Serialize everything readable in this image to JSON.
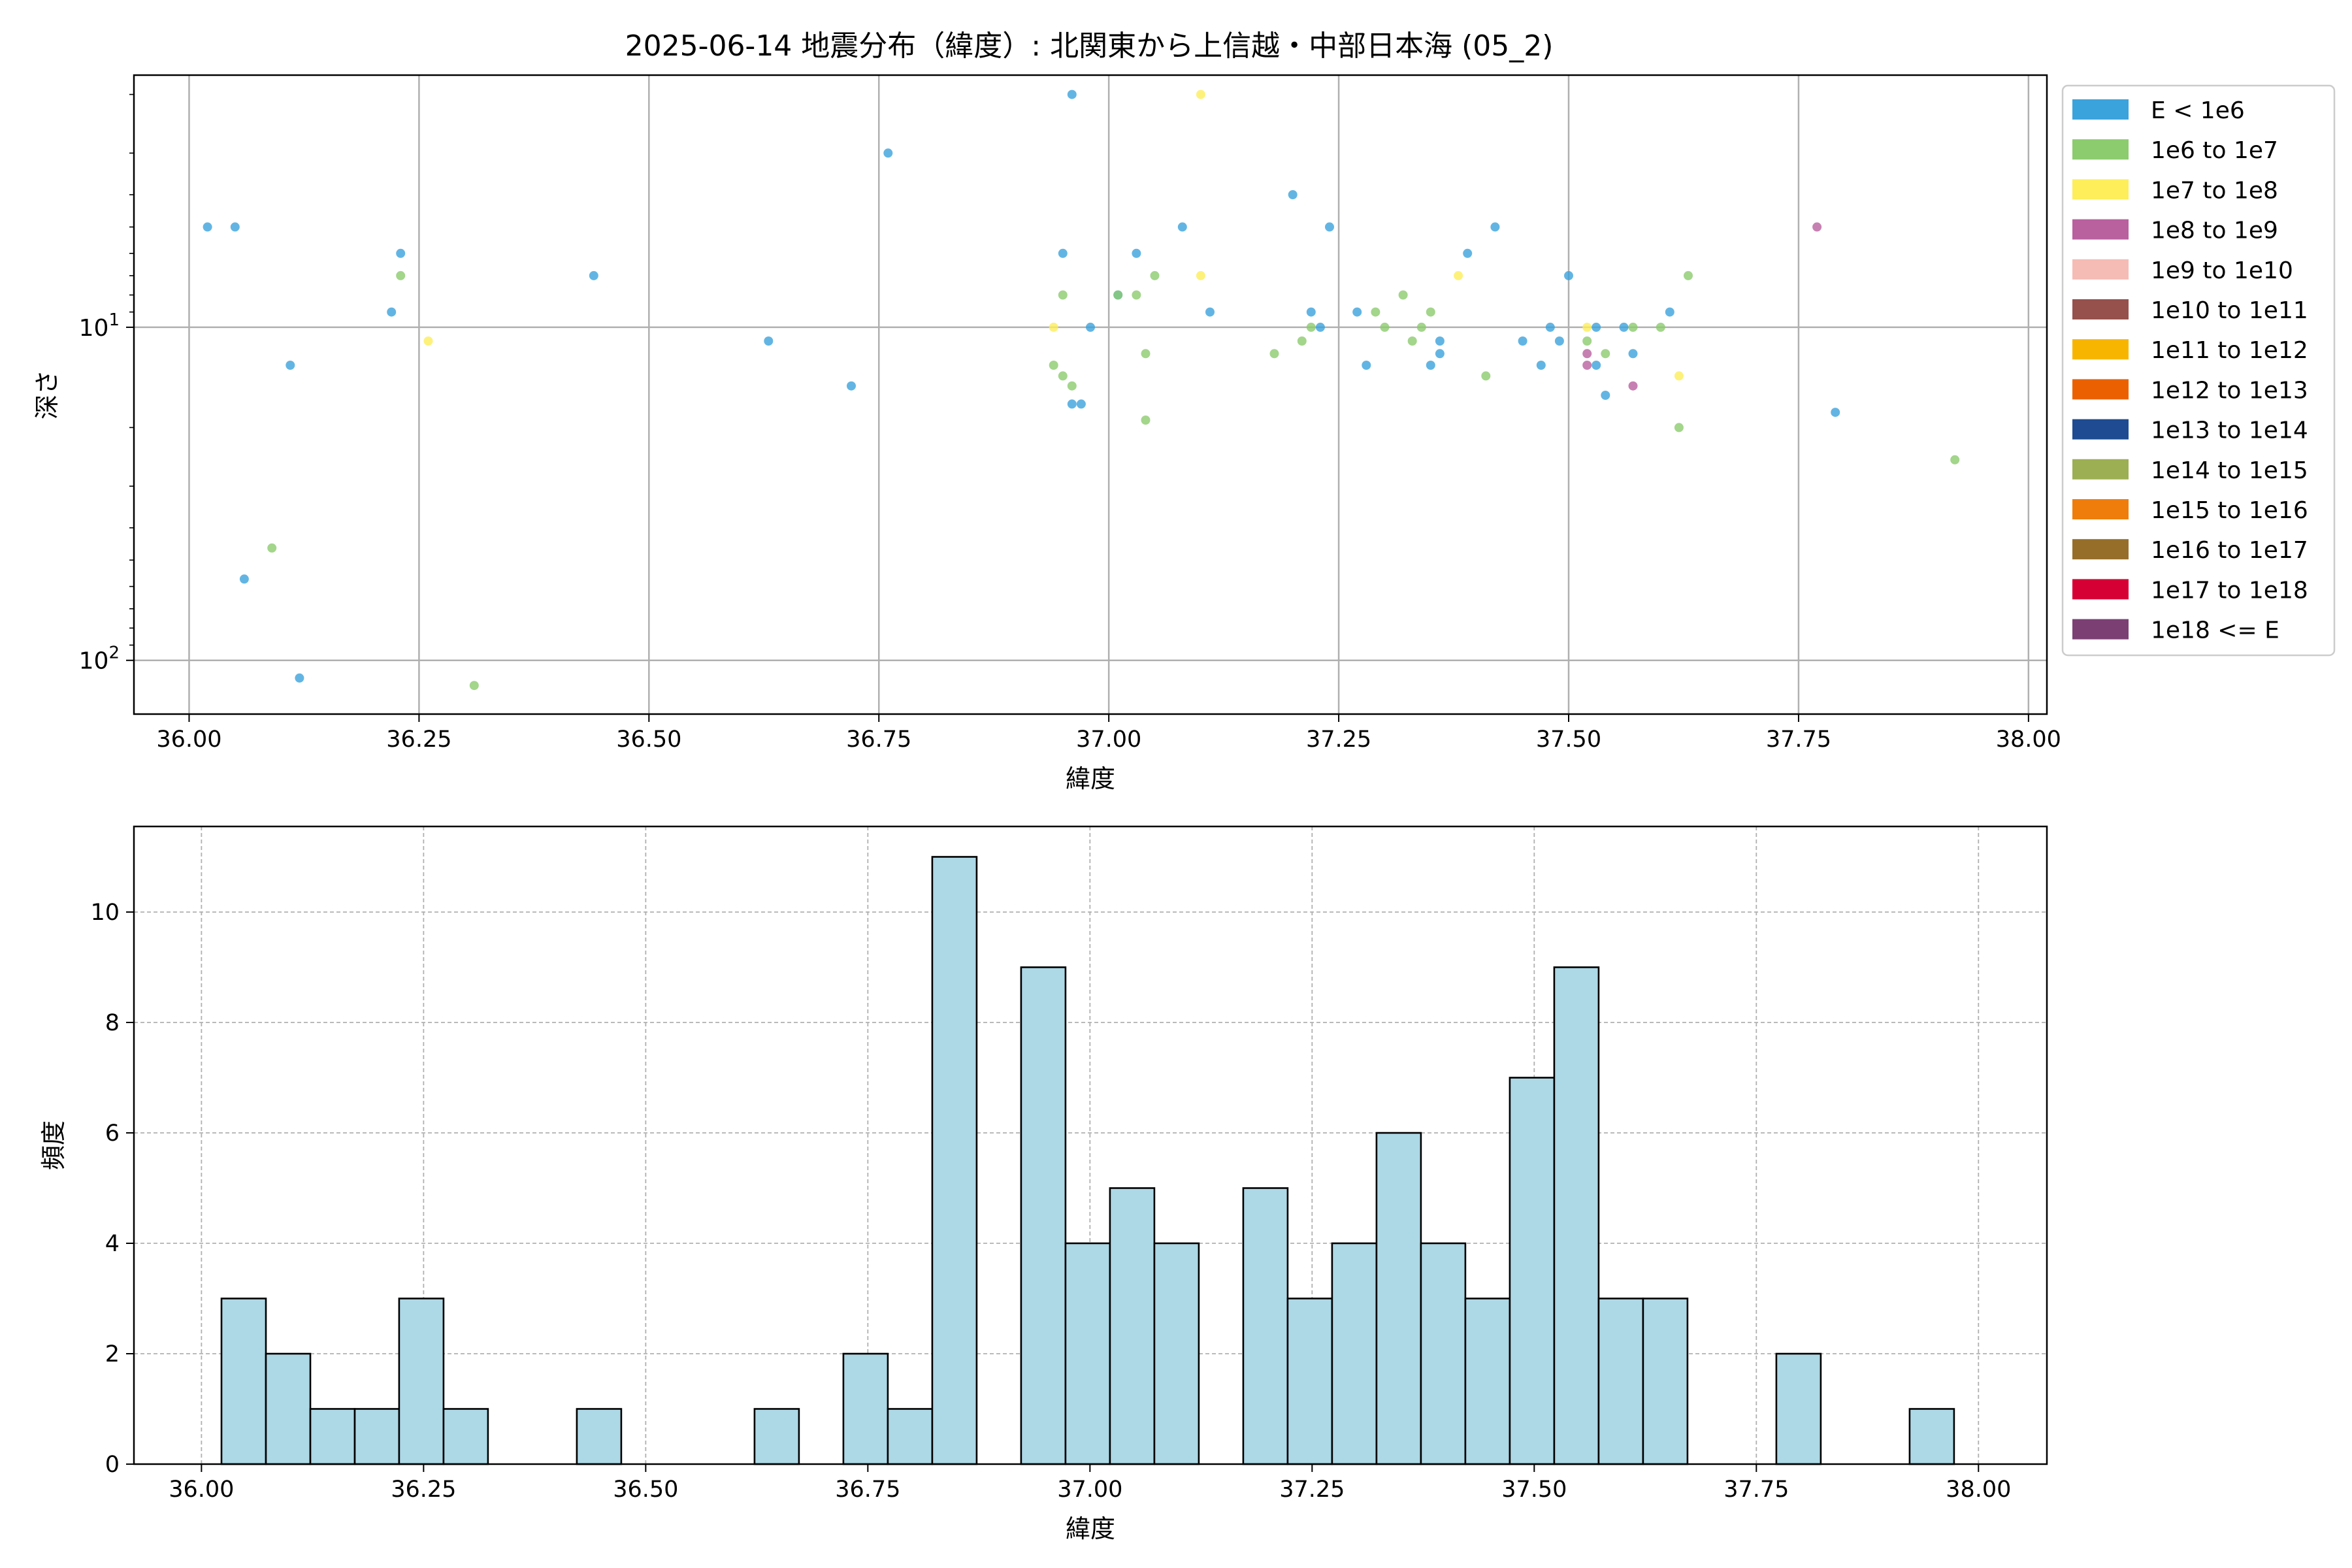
{
  "title": "2025-06-14 地震分布（緯度）: 北関東から上信越・中部日本海 (05_2)",
  "colors": {
    "E < 1e6": "#3ba3dc",
    "1e6 to 1e7": "#8ccb6e",
    "1e7 to 1e8": "#fdee5a",
    "1e8 to 1e9": "#b9609f",
    "1e9 to 1e10": "#f5bbb5",
    "1e10 to 1e11": "#96514d",
    "1e11 to 1e12": "#f8b500",
    "1e12 to 1e13": "#eb6101",
    "1e13 to 1e14": "#1e4b91",
    "1e14 to 1e15": "#9caf52",
    "1e15 to 1e16": "#ef7d0c",
    "1e16 to 1e17": "#976e29",
    "1e17 to 1e18": "#d70035",
    "1e18 <= E": "#7b3f74",
    "hist_fill": "#add8e6"
  },
  "chart_data": [
    {
      "type": "scatter",
      "title": "2025-06-14 地震分布（緯度）: 北関東から上信越・中部日本海 (05_2)",
      "xlabel": "緯度",
      "ylabel": "深さ",
      "y_scale": "log",
      "y_inverted": true,
      "xlim": [
        35.94,
        38.02
      ],
      "ylim": [
        1.75,
        145
      ],
      "x_ticks": [
        "36.00",
        "36.25",
        "36.50",
        "36.75",
        "37.00",
        "37.25",
        "37.50",
        "37.75",
        "38.00"
      ],
      "y_ticks": [
        {
          "value": 10,
          "label": "10^1"
        },
        {
          "value": 100,
          "label": "10^2"
        }
      ],
      "grid": true,
      "legend_position": "outside-right",
      "legend": [
        "E < 1e6",
        "1e6 to 1e7",
        "1e7 to 1e8",
        "1e8 to 1e9",
        "1e9 to 1e10",
        "1e10 to 1e11",
        "1e11 to 1e12",
        "1e12 to 1e13",
        "1e13 to 1e14",
        "1e14 to 1e15",
        "1e15 to 1e16",
        "1e16 to 1e17",
        "1e17 to 1e18",
        "1e18 <= E"
      ],
      "series": [
        {
          "name": "E < 1e6",
          "points": [
            [
              36.02,
              5
            ],
            [
              36.05,
              5
            ],
            [
              36.06,
              57
            ],
            [
              36.11,
              13
            ],
            [
              36.12,
              113
            ],
            [
              36.22,
              9
            ],
            [
              36.23,
              6
            ],
            [
              36.44,
              7
            ],
            [
              36.63,
              11
            ],
            [
              36.72,
              15
            ],
            [
              36.76,
              3
            ],
            [
              36.95,
              6
            ],
            [
              36.96,
              2
            ],
            [
              36.96,
              17
            ],
            [
              36.97,
              17
            ],
            [
              36.98,
              10
            ],
            [
              37.01,
              8
            ],
            [
              37.03,
              6
            ],
            [
              37.08,
              5
            ],
            [
              37.11,
              9
            ],
            [
              37.2,
              4
            ],
            [
              37.22,
              9
            ],
            [
              37.23,
              10
            ],
            [
              37.24,
              5
            ],
            [
              37.27,
              9
            ],
            [
              37.28,
              13
            ],
            [
              37.35,
              13
            ],
            [
              37.36,
              12
            ],
            [
              37.36,
              11
            ],
            [
              37.39,
              6
            ],
            [
              37.42,
              5
            ],
            [
              37.45,
              11
            ],
            [
              37.47,
              13
            ],
            [
              37.48,
              10
            ],
            [
              37.49,
              11
            ],
            [
              37.5,
              7
            ],
            [
              37.53,
              10
            ],
            [
              37.53,
              13
            ],
            [
              37.54,
              16
            ],
            [
              37.56,
              10
            ],
            [
              37.57,
              12
            ],
            [
              37.61,
              9
            ],
            [
              37.79,
              18
            ]
          ]
        },
        {
          "name": "1e6 to 1e7",
          "points": [
            [
              36.09,
              46
            ],
            [
              36.23,
              7
            ],
            [
              36.31,
              119
            ],
            [
              36.94,
              13
            ],
            [
              36.95,
              8
            ],
            [
              36.95,
              14
            ],
            [
              36.96,
              15
            ],
            [
              37.01,
              8
            ],
            [
              37.03,
              8
            ],
            [
              37.04,
              12
            ],
            [
              37.04,
              19
            ],
            [
              37.05,
              7
            ],
            [
              37.18,
              12
            ],
            [
              37.21,
              11
            ],
            [
              37.22,
              10
            ],
            [
              37.29,
              9
            ],
            [
              37.3,
              10
            ],
            [
              37.32,
              8
            ],
            [
              37.33,
              11
            ],
            [
              37.34,
              10
            ],
            [
              37.35,
              9
            ],
            [
              37.41,
              14
            ],
            [
              37.52,
              11
            ],
            [
              37.54,
              12
            ],
            [
              37.57,
              10
            ],
            [
              37.6,
              10
            ],
            [
              37.62,
              20
            ],
            [
              37.63,
              7
            ],
            [
              37.92,
              25
            ]
          ]
        },
        {
          "name": "1e7 to 1e8",
          "points": [
            [
              36.26,
              11
            ],
            [
              36.94,
              10
            ],
            [
              37.1,
              2
            ],
            [
              37.1,
              7
            ],
            [
              37.38,
              7
            ],
            [
              37.52,
              10
            ],
            [
              37.62,
              14
            ]
          ]
        },
        {
          "name": "1e8 to 1e9",
          "points": [
            [
              37.52,
              12
            ],
            [
              37.52,
              13
            ],
            [
              37.57,
              15
            ],
            [
              37.77,
              5
            ]
          ]
        }
      ]
    },
    {
      "type": "bar",
      "subtype": "histogram",
      "xlabel": "緯度",
      "ylabel": "頻度",
      "xlim": [
        35.924,
        38.077
      ],
      "ylim": [
        0,
        11.55
      ],
      "x_ticks": [
        "36.00",
        "36.25",
        "36.50",
        "36.75",
        "37.00",
        "37.25",
        "37.50",
        "37.75",
        "38.00"
      ],
      "y_ticks": [
        "0",
        "2",
        "4",
        "6",
        "8",
        "10"
      ],
      "grid": true,
      "bin_start": 36.0225,
      "bin_width": 0.05,
      "values": [
        3,
        2,
        1,
        1,
        3,
        1,
        0,
        0,
        1,
        0,
        0,
        0,
        1,
        0,
        2,
        1,
        11,
        0,
        9,
        4,
        5,
        4,
        0,
        5,
        3,
        4,
        6,
        4,
        3,
        7,
        9,
        3,
        3,
        0,
        0,
        2,
        0,
        0,
        1
      ]
    }
  ]
}
